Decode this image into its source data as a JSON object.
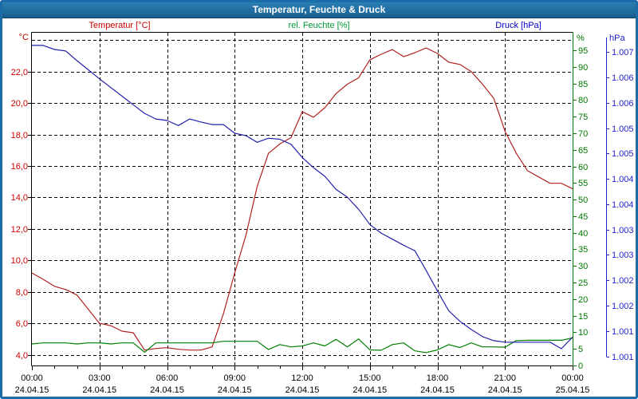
{
  "window": {
    "title": "Temperatur, Feuchte & Druck",
    "frame_color": "#1b6ca8",
    "titlebar_top_color": "#2b7fb4",
    "titlebar_bottom_color": "#175e90"
  },
  "legend": {
    "temperature_label": "Temperatur [°C]",
    "humidity_label": "rel. Feuchte [%]",
    "pressure_label": "Druck [hPa]"
  },
  "colors": {
    "temperature_label": "#cc0000",
    "humidity_label": "#009933",
    "pressure_label": "#0000cc",
    "temperature_curve": "#b22222",
    "humidity_curve": "#007f00",
    "pressure_curve": "#2222aa",
    "temperature_axis_text": "#cc0000",
    "humidity_axis": "#007700",
    "pressure_axis": "#2222cc",
    "grid": "#000000",
    "plot_border": "#000000",
    "time_text": "#000000"
  },
  "chart_data": {
    "type": "line",
    "title": "Temperatur, Feuchte & Druck",
    "grid": "dashed",
    "x_unit": "hours since 24.04.15 00:00",
    "x_hours": [
      0,
      0.5,
      1,
      1.5,
      2,
      2.5,
      3,
      3.5,
      4,
      4.5,
      5,
      5.5,
      6,
      6.5,
      7,
      7.5,
      8,
      8.5,
      9,
      9.5,
      10,
      10.5,
      11,
      11.5,
      12,
      12.5,
      13,
      13.5,
      14,
      14.5,
      15,
      15.5,
      16,
      16.5,
      17,
      17.5,
      18,
      18.5,
      19,
      19.5,
      20,
      20.5,
      21,
      21.5,
      22,
      22.5,
      23,
      23.5,
      24
    ],
    "series": [
      {
        "name": "Temperatur",
        "unit": "°C",
        "axis": "temperature",
        "values": [
          9.2,
          8.8,
          8.35,
          8.15,
          7.8,
          6.9,
          6.0,
          5.85,
          5.5,
          5.4,
          4.3,
          4.4,
          4.45,
          4.35,
          4.3,
          4.3,
          4.5,
          6.6,
          9.2,
          11.6,
          14.7,
          16.8,
          17.4,
          17.8,
          19.45,
          19.1,
          19.7,
          20.6,
          21.2,
          21.6,
          22.75,
          23.1,
          23.4,
          22.95,
          23.2,
          23.5,
          23.15,
          22.6,
          22.45,
          22.0,
          21.2,
          20.3,
          18.2,
          16.8,
          15.7,
          15.3,
          14.9,
          14.9,
          14.55
        ]
      },
      {
        "name": "rel. Feuchte",
        "unit": "%",
        "axis": "humidity",
        "values": [
          6.5,
          6.8,
          6.8,
          6.8,
          6.5,
          6.8,
          6.8,
          6.5,
          6.8,
          6.8,
          4.0,
          6.8,
          6.8,
          6.8,
          6.8,
          6.8,
          6.8,
          7.3,
          7.3,
          7.3,
          7.3,
          4.8,
          6.3,
          5.6,
          5.9,
          6.8,
          5.9,
          7.9,
          5.6,
          8.0,
          4.7,
          4.6,
          6.3,
          6.8,
          4.4,
          3.9,
          4.7,
          6.3,
          5.4,
          6.8,
          5.6,
          5.6,
          5.5,
          7.5,
          7.6,
          7.6,
          7.6,
          7.6,
          8.3
        ]
      },
      {
        "name": "Druck",
        "unit": "hPa",
        "axis": "pressure",
        "values": [
          1006.93,
          1006.93,
          1006.85,
          1006.82,
          1006.63,
          1006.45,
          1006.27,
          1006.1,
          1005.93,
          1005.76,
          1005.59,
          1005.48,
          1005.45,
          1005.35,
          1005.48,
          1005.42,
          1005.37,
          1005.37,
          1005.2,
          1005.15,
          1005.02,
          1005.1,
          1005.08,
          1004.98,
          1004.72,
          1004.52,
          1004.35,
          1004.09,
          1003.94,
          1003.7,
          1003.4,
          1003.23,
          1003.11,
          1002.99,
          1002.88,
          1002.49,
          1002.09,
          1001.7,
          1001.49,
          1001.33,
          1001.19,
          1001.11,
          1001.08,
          1001.08,
          1001.08,
          1001.08,
          1001.08,
          1000.95,
          1001.18
        ]
      }
    ],
    "axes": {
      "temperature": {
        "unit": "°C",
        "min": 3.32,
        "max": 24.47,
        "gridline_values": [
          4,
          6,
          8,
          10,
          12,
          14,
          16,
          18,
          20,
          22,
          24
        ],
        "ticks": [
          {
            "value": 22,
            "label": "22,0"
          },
          {
            "value": 20,
            "label": "20,0"
          },
          {
            "value": 18,
            "label": "18,0"
          },
          {
            "value": 16,
            "label": "16,0"
          },
          {
            "value": 14,
            "label": "14,0"
          },
          {
            "value": 12,
            "label": "12,0"
          },
          {
            "value": 10,
            "label": "10,0"
          },
          {
            "value": 8,
            "label": "8,0"
          },
          {
            "value": 6,
            "label": "6,0"
          },
          {
            "value": 4,
            "label": "4,0"
          }
        ]
      },
      "humidity": {
        "unit": "%",
        "min": 0,
        "max": 100.3,
        "ticks": [
          {
            "value": 95,
            "label": "95"
          },
          {
            "value": 90,
            "label": "90"
          },
          {
            "value": 85,
            "label": "85"
          },
          {
            "value": 80,
            "label": "80"
          },
          {
            "value": 75,
            "label": "75"
          },
          {
            "value": 70,
            "label": "70"
          },
          {
            "value": 65,
            "label": "65"
          },
          {
            "value": 60,
            "label": "60"
          },
          {
            "value": 55,
            "label": "55"
          },
          {
            "value": 50,
            "label": "50"
          },
          {
            "value": 45,
            "label": "45"
          },
          {
            "value": 40,
            "label": "40"
          },
          {
            "value": 35,
            "label": "35"
          },
          {
            "value": 30,
            "label": "30"
          },
          {
            "value": 25,
            "label": "25"
          },
          {
            "value": 20,
            "label": "20"
          },
          {
            "value": 15,
            "label": "15"
          },
          {
            "value": 10,
            "label": "10"
          },
          {
            "value": 5,
            "label": "5"
          },
          {
            "value": 0,
            "label": "0"
          }
        ]
      },
      "pressure": {
        "unit": "hPa",
        "min": 1000.62,
        "max": 1007.18,
        "ticks": [
          {
            "value": 1000.8,
            "label": "1.001"
          },
          {
            "value": 1001.3,
            "label": "1.001"
          },
          {
            "value": 1001.8,
            "label": "1.002"
          },
          {
            "value": 1002.3,
            "label": "1.002"
          },
          {
            "value": 1002.8,
            "label": "1.003"
          },
          {
            "value": 1003.3,
            "label": "1.003"
          },
          {
            "value": 1003.8,
            "label": "1.004"
          },
          {
            "value": 1004.3,
            "label": "1.004"
          },
          {
            "value": 1004.8,
            "label": "1.005"
          },
          {
            "value": 1005.3,
            "label": "1.005"
          },
          {
            "value": 1005.8,
            "label": "1.006"
          },
          {
            "value": 1006.3,
            "label": "1.006"
          },
          {
            "value": 1006.8,
            "label": "1.007"
          }
        ]
      },
      "time": {
        "minor_tick_every_hours": 1,
        "major_ticks": [
          {
            "hour": 0,
            "time": "00:00",
            "date": "24.04.15"
          },
          {
            "hour": 3,
            "time": "03:00",
            "date": "24.04.15"
          },
          {
            "hour": 6,
            "time": "06:00",
            "date": "24.04.15"
          },
          {
            "hour": 9,
            "time": "09:00",
            "date": "24.04.15"
          },
          {
            "hour": 12,
            "time": "12:00",
            "date": "24.04.15"
          },
          {
            "hour": 15,
            "time": "15:00",
            "date": "24.04.15"
          },
          {
            "hour": 18,
            "time": "18:00",
            "date": "24.04.15"
          },
          {
            "hour": 21,
            "time": "21:00",
            "date": "24.04.15"
          },
          {
            "hour": 24,
            "time": "00:00",
            "date": "25.04.15"
          }
        ]
      }
    }
  }
}
